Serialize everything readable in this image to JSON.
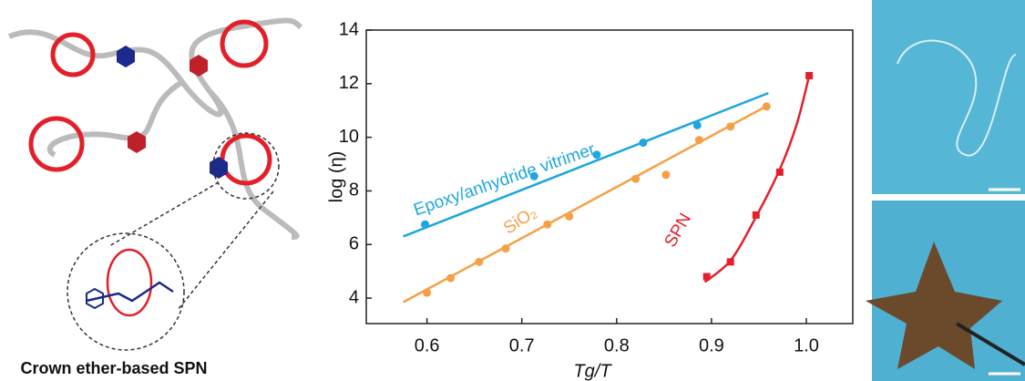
{
  "figure": {
    "caption": "Crown ether-based SPN"
  },
  "chart_data": {
    "type": "scatter",
    "xlabel": "Tg/T",
    "ylabel": "log (η)",
    "xlim": [
      0.536,
      1.049
    ],
    "ylim": [
      3.05,
      14
    ],
    "xticks": [
      0.6,
      0.7,
      0.8,
      0.9,
      {
        "value": 1,
        "label": "1.0"
      }
    ],
    "yticks": [
      4,
      6,
      8,
      10,
      12,
      14
    ],
    "series": [
      {
        "name": "Epoxy/anhydride vitrimer",
        "color": "#1ea6de",
        "x": [
          0.598,
          0.713,
          0.779,
          0.828,
          0.885
        ],
        "values": [
          6.75,
          8.55,
          9.35,
          9.8,
          10.45
        ],
        "fit": {
          "x": [
            0.575,
            0.96
          ],
          "y": [
            6.3,
            11.65
          ]
        }
      },
      {
        "name": "SiO₂",
        "color": "#f5a047",
        "x": [
          0.6,
          0.625,
          0.655,
          0.683,
          0.727,
          0.75,
          0.82,
          0.852,
          0.887,
          0.92,
          0.958
        ],
        "values": [
          4.2,
          4.75,
          5.35,
          5.85,
          6.75,
          7.05,
          8.45,
          8.6,
          9.9,
          10.4,
          11.15
        ],
        "fit": {
          "x": [
            0.575,
            0.96
          ],
          "y": [
            3.85,
            11.2
          ]
        }
      },
      {
        "name": "SPN",
        "color": "#e3202a",
        "x": [
          0.895,
          0.92,
          0.947,
          0.972,
          1.003
        ],
        "values": [
          4.8,
          5.35,
          7.1,
          8.7,
          12.3
        ],
        "fit": {
          "x": [
            0.893,
            0.92,
            0.945,
            0.972,
            0.99,
            1.003
          ],
          "y": [
            4.6,
            5.4,
            6.9,
            8.8,
            10.5,
            12.3
          ]
        }
      }
    ]
  }
}
